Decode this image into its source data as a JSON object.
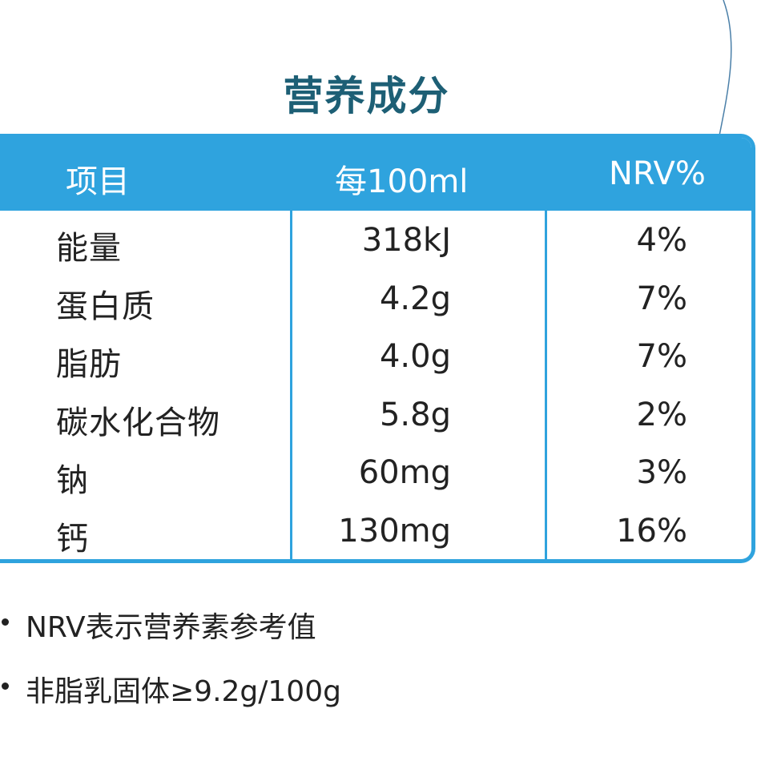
{
  "title": "营养成分",
  "table": {
    "headers": {
      "item": "项目",
      "per": "每100ml",
      "nrv": "NRV%"
    },
    "rows": [
      {
        "name": "能量",
        "amount": "318kJ",
        "nrv": "4%"
      },
      {
        "name": "蛋白质",
        "amount": "4.2g",
        "nrv": "7%"
      },
      {
        "name": "脂肪",
        "amount": "4.0g",
        "nrv": "7%"
      },
      {
        "name": "碳水化合物",
        "amount": "5.8g",
        "nrv": "2%"
      },
      {
        "name": "钠",
        "amount": "60mg",
        "nrv": "3%"
      },
      {
        "name": "钙",
        "amount": "130mg",
        "nrv": "16%"
      }
    ]
  },
  "notes": [
    "NRV表示营养素参考值",
    "非脂乳固体≥9.2g/100g"
  ],
  "colors": {
    "accent": "#2fa3de",
    "title": "#1d5f75",
    "text": "#222222"
  }
}
